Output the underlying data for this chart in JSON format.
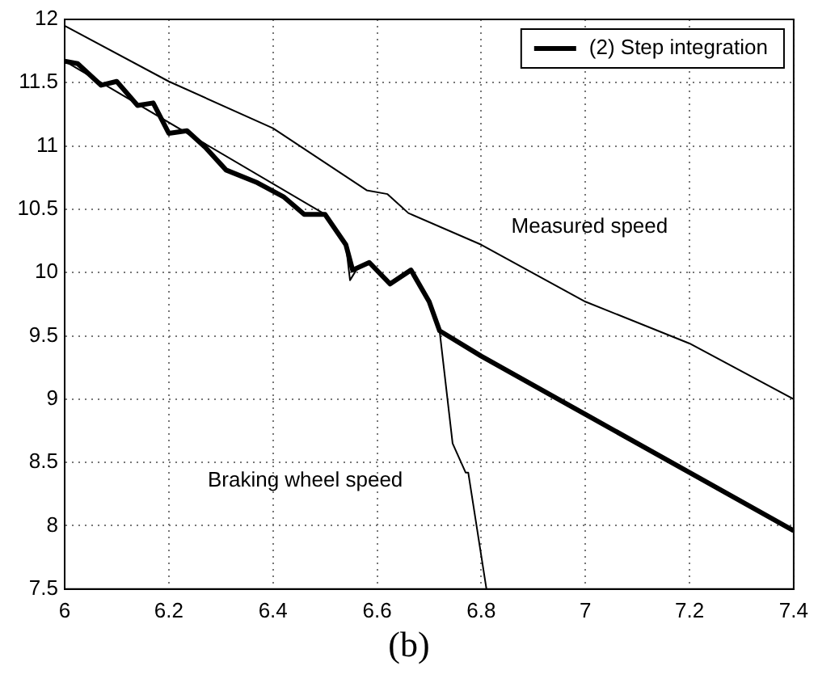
{
  "chart_data": {
    "type": "line",
    "xlim": [
      6,
      7.4
    ],
    "xticks": [
      6,
      6.2,
      6.4,
      6.6,
      6.8,
      7,
      7.2,
      7.4
    ],
    "ylim": [
      7.5,
      12
    ],
    "yticks": [
      7.5,
      8,
      8.5,
      9,
      9.5,
      10,
      10.5,
      11,
      11.5,
      12
    ],
    "grid": true,
    "legend": "top right",
    "marker": "none",
    "line_style": "solid",
    "series": [
      {
        "name": "(2) Step integration",
        "color": "#000000",
        "x": [
          6,
          6.025,
          6.07,
          6.1,
          6.14,
          6.17,
          6.2,
          6.235,
          6.27,
          6.31,
          6.37,
          6.42,
          6.46,
          6.5,
          6.54,
          6.553,
          6.585,
          6.625,
          6.665,
          6.7,
          6.72,
          6.8,
          7,
          7.2,
          7.4
        ],
        "values": [
          11.67,
          11.65,
          11.48,
          11.51,
          11.32,
          11.34,
          11.1,
          11.12,
          10.99,
          10.81,
          10.71,
          10.6,
          10.46,
          10.46,
          10.22,
          10.02,
          10.08,
          9.91,
          10.02,
          9.77,
          9.54,
          9.34,
          8.88,
          8.42,
          7.96
        ]
      },
      {
        "color": "#000000",
        "x": [
          6,
          6.2,
          6.4,
          6.58,
          6.62,
          6.66,
          6.8,
          7,
          7.2,
          7.4
        ],
        "values": [
          11.95,
          11.51,
          11.14,
          10.65,
          10.62,
          10.47,
          10.22,
          9.77,
          9.44,
          9
        ]
      },
      {
        "color": "#000000",
        "x": [
          6,
          6.5,
          6.54,
          6.548,
          6.56,
          6.585,
          6.625,
          6.665,
          6.7,
          6.72,
          6.745,
          6.77,
          6.775,
          6.81
        ],
        "values": [
          11.67,
          10.46,
          10.22,
          9.94,
          10.02,
          10.08,
          9.91,
          10.02,
          9.77,
          9.54,
          8.65,
          8.42,
          8.42,
          7.5
        ]
      }
    ],
    "annotations": [
      "Measured speed",
      "Braking wheel speed",
      "(b)"
    ]
  }
}
